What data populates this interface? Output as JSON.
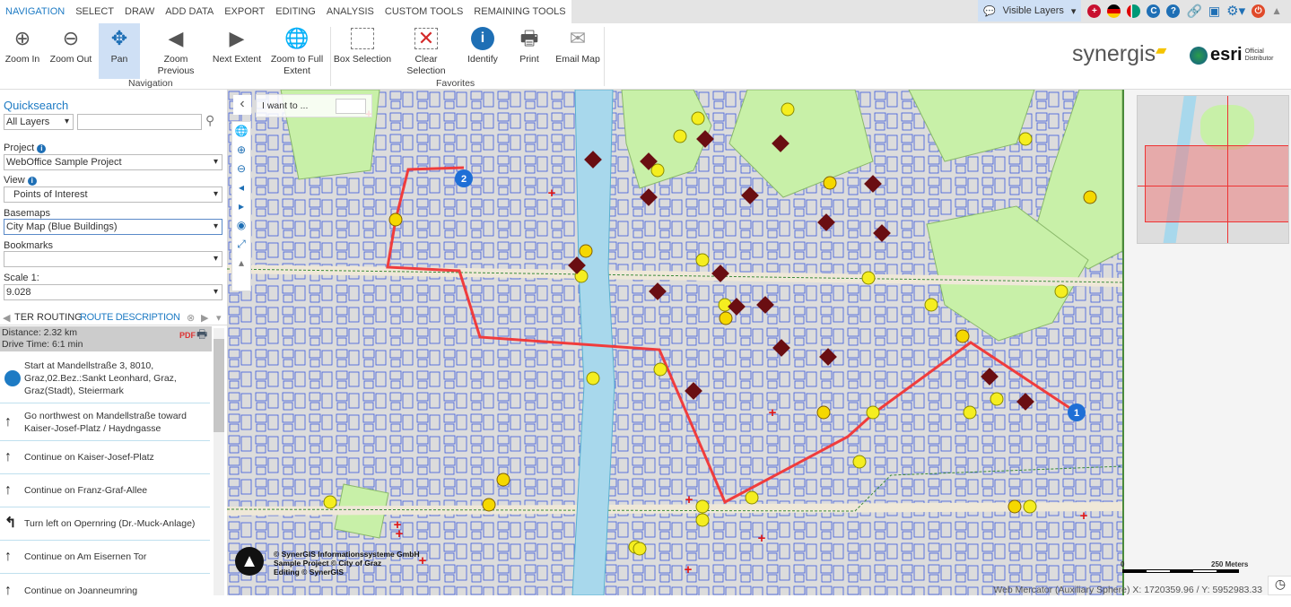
{
  "menu_tabs": [
    "NAVIGATION",
    "SELECT",
    "DRAW",
    "ADD DATA",
    "EXPORT",
    "EDITING",
    "ANALYSIS",
    "CUSTOM TOOLS",
    "REMAINING TOOLS"
  ],
  "topbar": {
    "visible_layers": "Visible Layers",
    "icons": [
      "flag-uk-icon",
      "flag-de-icon",
      "flag-ae-icon",
      "c-icon",
      "help-icon",
      "link-icon",
      "save-icon",
      "gear-icon",
      "power-icon",
      "collapse-icon"
    ]
  },
  "ribbon": {
    "buttons": [
      {
        "label": "Zoom In",
        "icon": "zoom-in"
      },
      {
        "label": "Zoom Out",
        "icon": "zoom-out"
      },
      {
        "label": "Pan",
        "icon": "pan"
      },
      {
        "label": "Zoom Previous",
        "icon": "zoom-previous"
      },
      {
        "label": "Next Extent",
        "icon": "next-extent"
      },
      {
        "label": "Zoom to Full Extent",
        "icon": "globe"
      },
      {
        "label": "Box Selection",
        "icon": "box"
      },
      {
        "label": "Clear Selection",
        "icon": "clear"
      },
      {
        "label": "Identify",
        "icon": "info"
      },
      {
        "label": "Print",
        "icon": "printer"
      },
      {
        "label": "Email Map",
        "icon": "mail"
      }
    ],
    "groups": [
      "Navigation",
      "Favorites"
    ],
    "logos": [
      "synergis",
      "esri",
      "Official Distributor"
    ]
  },
  "left": {
    "quicksearch": "Quicksearch",
    "layers": "All Layers",
    "search_value": "",
    "project_label": "Project",
    "project": "WebOffice Sample Project",
    "view_label": "View",
    "view": "Points of Interest",
    "basemaps_label": "Basemaps",
    "basemap": "City Map (Blue Buildings)",
    "bookmarks_label": "Bookmarks",
    "bookmark": "",
    "scale_label": "Scale 1:",
    "scale": "9.028",
    "panel_tabs": [
      "TER",
      "ROUTING",
      "ROUTE DESCRIPTION"
    ],
    "distance": "Distance: 2.32 km",
    "drive_time": "Drive Time: 6:1 min",
    "steps": [
      {
        "icon": "start-dot",
        "text": "Start at Mandellstraße 3, 8010, Graz,02.Bez.:Sankt Leonhard, Graz, Graz(Stadt), Steiermark"
      },
      {
        "icon": "arrow-up",
        "text": "Go northwest on Mandellstraße toward Kaiser-Josef-Platz / Haydngasse"
      },
      {
        "icon": "arrow-up",
        "text": "Continue on Kaiser-Josef-Platz"
      },
      {
        "icon": "arrow-up",
        "text": "Continue on Franz-Graf-Allee"
      },
      {
        "icon": "turn-left",
        "text": "Turn left on Opernring (Dr.-Muck-Anlage)"
      },
      {
        "icon": "arrow-up",
        "text": "Continue on Am Eisernen Tor"
      },
      {
        "icon": "arrow-up",
        "text": "Continue on Joanneumring"
      }
    ]
  },
  "map": {
    "i_want_to": "I want to ...",
    "route_markers": [
      "1",
      "2"
    ],
    "route_color": "#f03c3c",
    "copyright": [
      "© SynerGIS Informationssysteme GmbH",
      "Sample Project © City of Graz",
      "Editing © SynerGIS"
    ],
    "scalebar": {
      "zero": "0",
      "end": "250 Meters"
    },
    "coordinates": "Web Mercator (Auxiliary Sphere) X: 1720359.96 / Y: 5952983.33"
  }
}
